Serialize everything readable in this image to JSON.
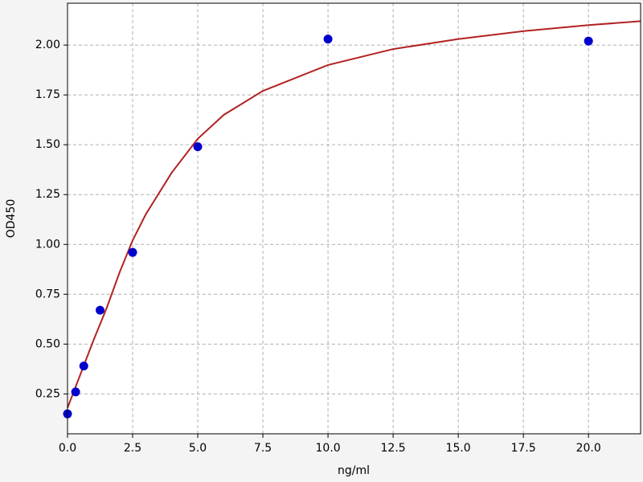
{
  "chart_data": {
    "type": "scatter",
    "x_label": "ng/ml",
    "y_label": "OD450",
    "xlim": [
      0,
      22
    ],
    "ylim": [
      0.05,
      2.21
    ],
    "xticks": [
      {
        "value": 0,
        "label": "0.0"
      },
      2.5,
      {
        "value": 5,
        "label": "5.0"
      },
      7.5,
      {
        "value": 10,
        "label": "10.0"
      },
      12.5,
      {
        "value": 15,
        "label": "15.0"
      },
      17.5,
      {
        "value": 20,
        "label": "20.0"
      }
    ],
    "yticks": [
      0.25,
      {
        "value": 0.5,
        "label": "0.50"
      },
      0.75,
      {
        "value": 1,
        "label": "1.00"
      },
      1.25,
      {
        "value": 1.5,
        "label": "1.50"
      },
      1.75,
      {
        "value": 2,
        "label": "2.00"
      }
    ],
    "grid": true,
    "series": [
      {
        "mode": "line",
        "color": "#b22222",
        "x": [
          0,
          0.5,
          1,
          1.5,
          2,
          2.5,
          3,
          4,
          5,
          6,
          7.5,
          10,
          12.5,
          15,
          17.5,
          20,
          22
        ],
        "values": [
          0.18,
          0.35,
          0.52,
          0.68,
          0.86,
          1.02,
          1.15,
          1.36,
          1.53,
          1.65,
          1.77,
          1.9,
          1.98,
          2.03,
          2.07,
          2.1,
          2.12
        ]
      },
      {
        "mode": "markers",
        "color": "#0000cd",
        "x": [
          0,
          0.3125,
          0.625,
          1.25,
          2.5,
          5,
          10,
          20
        ],
        "values": [
          0.15,
          0.26,
          0.39,
          0.67,
          0.96,
          1.49,
          2.03,
          2.02
        ]
      }
    ]
  }
}
